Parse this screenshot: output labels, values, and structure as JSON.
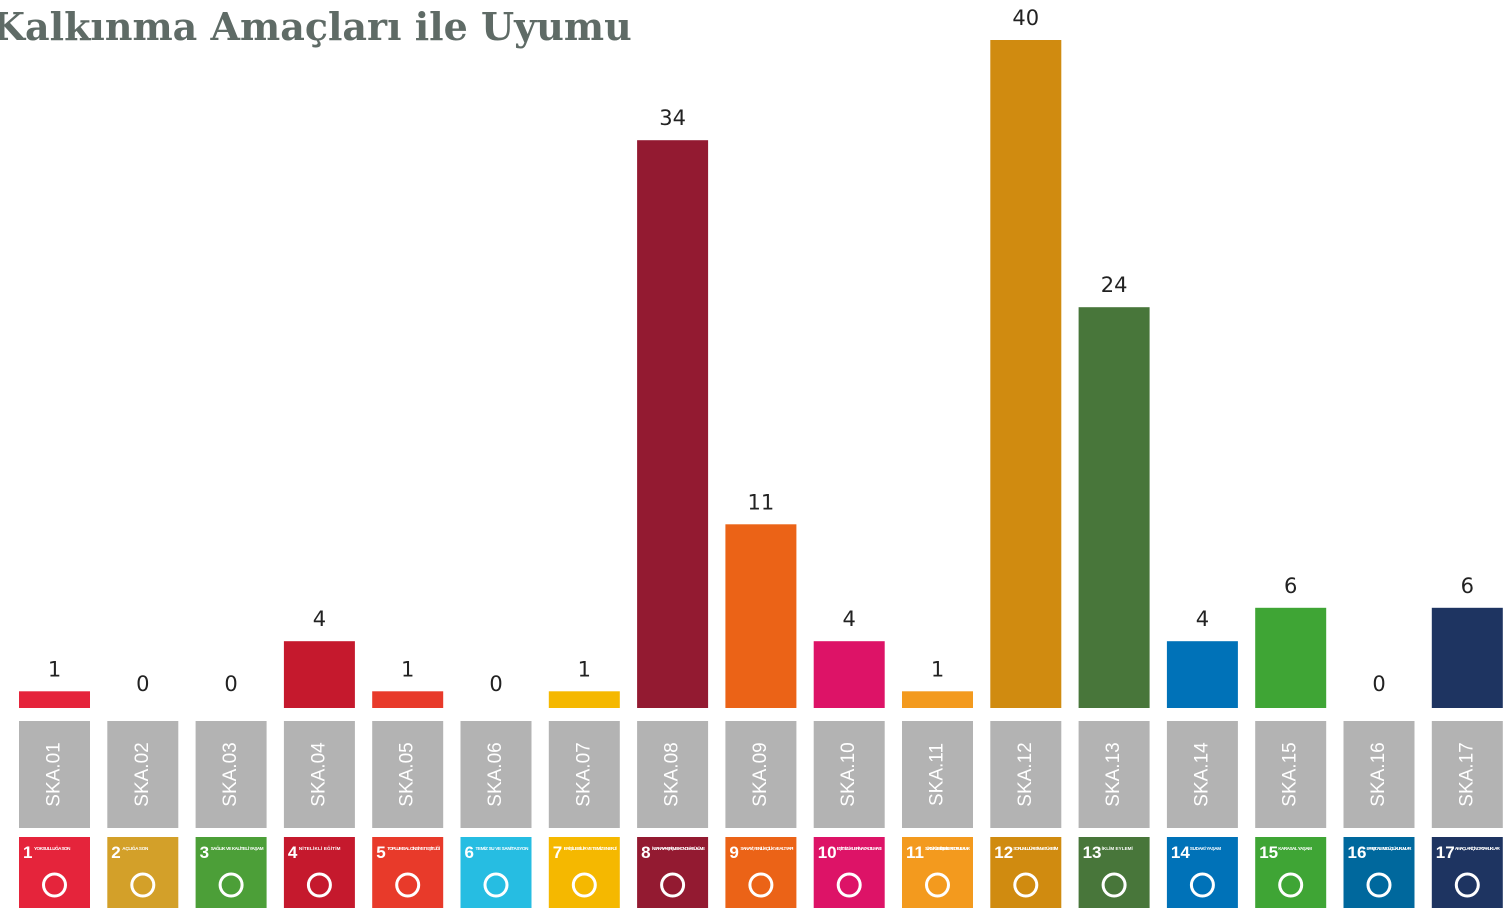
{
  "chart_data": {
    "type": "bar",
    "title": "Kalkınma Amaçları ile Uyumu",
    "categories": [
      "SKA.01",
      "SKA.02",
      "SKA.03",
      "SKA.04",
      "SKA.05",
      "SKA.06",
      "SKA.07",
      "SKA.08",
      "SKA.09",
      "SKA.10",
      "SKA.11",
      "SKA.12",
      "SKA.13",
      "SKA.14",
      "SKA.15",
      "SKA.16",
      "SKA.17"
    ],
    "values": [
      1,
      0,
      0,
      4,
      1,
      0,
      1,
      34,
      11,
      4,
      1,
      40,
      24,
      4,
      6,
      0,
      6
    ],
    "colors": [
      "#e5243b",
      "#d3a029",
      "#4c9f38",
      "#c5192d",
      "#e83a2a",
      "#26bde2",
      "#f5b800",
      "#931a31",
      "#eb6317",
      "#dd1367",
      "#f39a1e",
      "#d08b10",
      "#48763a",
      "#0072b8",
      "#3fa535",
      "#00689d",
      "#1e3461"
    ],
    "icons": [
      {
        "number": 1,
        "label": "YOKSULLUĞA SON"
      },
      {
        "number": 2,
        "label": "AÇLIĞA SON"
      },
      {
        "number": 3,
        "label": "SAĞLIK VE KALİTELİ YAŞAM"
      },
      {
        "number": 4,
        "label": "NİTELİKLİ EĞİTİM"
      },
      {
        "number": 5,
        "label": "TOPLUMSAL CİNSİYET EŞİTLİĞİ"
      },
      {
        "number": 6,
        "label": "TEMİZ SU VE SANİTASYON"
      },
      {
        "number": 7,
        "label": "ERİŞİLEBİLİR VE TEMİZ ENERJİ"
      },
      {
        "number": 8,
        "label": "İNSANA YAKIŞIR İŞ VE EKONOMİK BÜYÜME"
      },
      {
        "number": 9,
        "label": "SANAYİ, YENİLİKÇİLİK VE ALTYAPI"
      },
      {
        "number": 10,
        "label": "EŞİTSİZLİKLERİN AZALTILMASI"
      },
      {
        "number": 11,
        "label": "SÜRDÜRÜLEBİLİR ŞEHİRLER VE TOPLULUKLAR"
      },
      {
        "number": 12,
        "label": "SORUMLU ÜRETİM VE TÜKETİM"
      },
      {
        "number": 13,
        "label": "İKLİM EYLEMİ"
      },
      {
        "number": 14,
        "label": "SUDAKİ YAŞAM"
      },
      {
        "number": 15,
        "label": "KARASAL YAŞAM"
      },
      {
        "number": 16,
        "label": "BARIŞ, ADALET VE GÜÇLÜ KURUMLAR"
      },
      {
        "number": 17,
        "label": "AMAÇLAR İÇİN ORTAKLIKLAR"
      }
    ]
  }
}
